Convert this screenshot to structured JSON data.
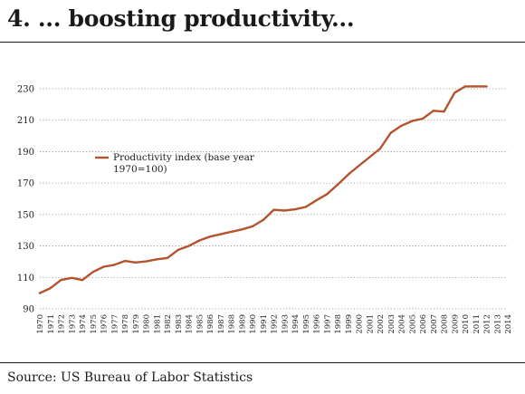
{
  "title": "4. ... boosting productivity...",
  "source": "Source: US Bureau of Labor Statistics",
  "chart_data": {
    "type": "line",
    "title": "4. ... boosting productivity...",
    "xlabel": "",
    "ylabel": "",
    "ylim": [
      90,
      230
    ],
    "yticks": [
      90,
      110,
      130,
      150,
      170,
      190,
      210,
      230
    ],
    "xlim": [
      1970,
      2014
    ],
    "xticks": [
      1970,
      1971,
      1972,
      1973,
      1974,
      1975,
      1976,
      1977,
      1978,
      1979,
      1980,
      1981,
      1982,
      1983,
      1984,
      1985,
      1986,
      1987,
      1988,
      1989,
      1990,
      1991,
      1992,
      1993,
      1994,
      1995,
      1996,
      1997,
      1998,
      1999,
      2000,
      2001,
      2002,
      2003,
      2004,
      2005,
      2006,
      2007,
      2008,
      2009,
      2010,
      2011,
      2012,
      2013,
      2014
    ],
    "grid": "horizontal dotted",
    "legend": {
      "position": "upper-left",
      "label": "Productivity index (base year 1970=100)",
      "line1": "Productivity index (base year",
      "line2": "1970=100)"
    },
    "series": [
      {
        "name": "Productivity index (base year 1970=100)",
        "color": "#b5532f",
        "x": [
          1970,
          1971,
          1972,
          1973,
          1974,
          1975,
          1976,
          1977,
          1978,
          1979,
          1980,
          1981,
          1982,
          1983,
          1984,
          1985,
          1986,
          1987,
          1988,
          1989,
          1990,
          1991,
          1992,
          1993,
          1994,
          1995,
          1996,
          1997,
          1998,
          1999,
          2000,
          2001,
          2002,
          2003,
          2004,
          2005,
          2006,
          2007,
          2008,
          2009,
          2010,
          2011,
          2012
        ],
        "values": [
          100.0,
          103.2,
          108.4,
          109.7,
          108.3,
          113.5,
          116.8,
          118.0,
          120.5,
          119.5,
          120.2,
          121.5,
          122.4,
          127.5,
          130.0,
          133.5,
          136.0,
          137.5,
          139.0,
          140.5,
          142.5,
          146.5,
          153.0,
          152.5,
          153.3,
          154.8,
          159.0,
          163.0,
          169.0,
          175.5,
          181.0,
          186.5,
          192.0,
          202.0,
          206.5,
          209.5,
          211.0,
          216.0,
          215.5,
          227.5,
          231.5,
          231.5,
          231.5
        ]
      }
    ]
  }
}
